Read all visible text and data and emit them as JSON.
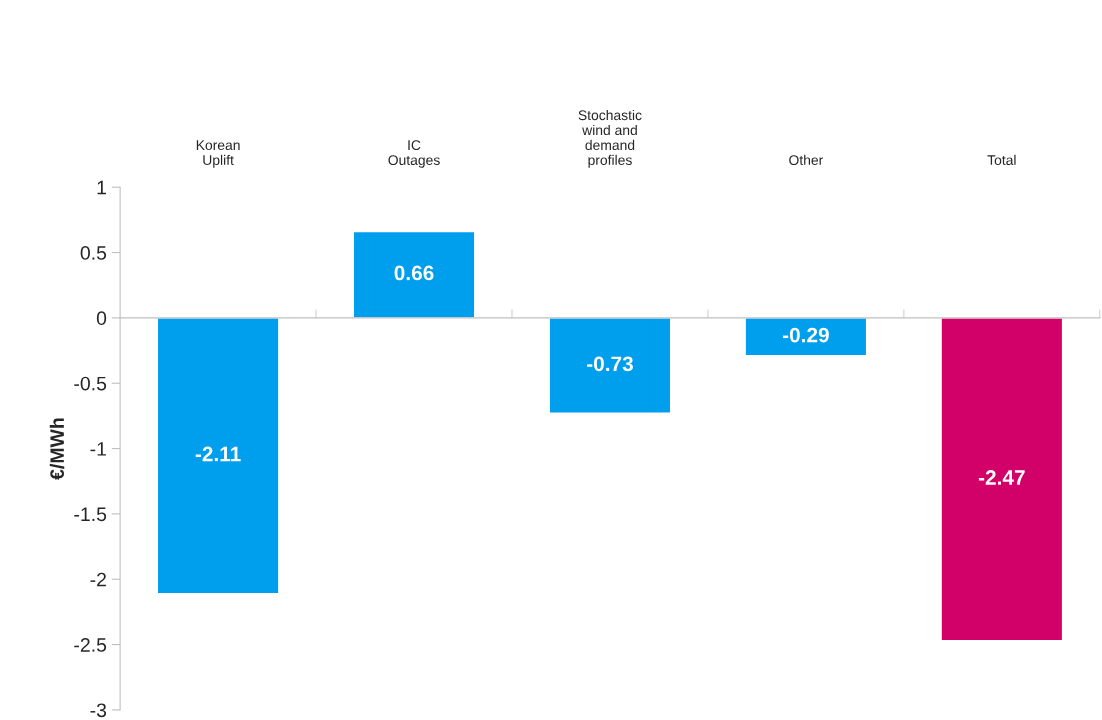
{
  "chart_data": {
    "type": "bar",
    "ylabel": "€/MWh",
    "categories": [
      "Korean\nUplift",
      "IC\nOutages",
      "Stochastic\nwind and\ndemand\nprofiles",
      "Other",
      "Total"
    ],
    "values": [
      -2.11,
      0.66,
      -0.73,
      -0.29,
      -2.47
    ],
    "colors": [
      "#009fee",
      "#009fee",
      "#009fee",
      "#009fee",
      "#d20069"
    ],
    "ylim": [
      -3,
      1
    ],
    "yticks": [
      -3,
      -2.5,
      -2,
      -1.5,
      -1,
      -0.5,
      0,
      0.5,
      1
    ],
    "data_labels": true
  }
}
